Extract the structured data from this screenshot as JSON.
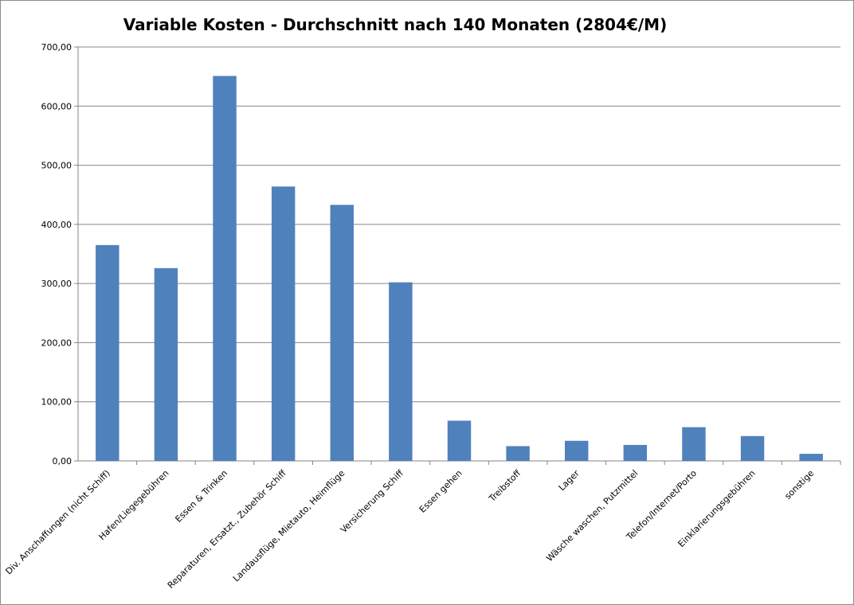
{
  "chart_data": {
    "type": "bar",
    "title": "Variable Kosten - Durchschnitt nach 140 Monaten (2804€/M)",
    "xlabel": "",
    "ylabel": "",
    "ylim": [
      0,
      700
    ],
    "yticks": [
      0,
      100,
      200,
      300,
      400,
      500,
      600,
      700
    ],
    "ytick_labels": [
      "0,00",
      "100,00",
      "200,00",
      "300,00",
      "400,00",
      "500,00",
      "600,00",
      "700,00"
    ],
    "grid": true,
    "legend": "none",
    "bar_color": "#4f81bd",
    "categories": [
      "Div. Anschaffungen (nicht Schiff)",
      "Hafen/Liegegebühren",
      "Essen & Trinken",
      "Reparaturen, Ersatzt., Zubehör Schiff",
      "Landausflüge, Mietauto, Heimflüge",
      "Versicherung Schiff",
      "Essen gehen",
      "Treibstoff",
      "Lager",
      "Wäsche waschen, Putzmittel",
      "Telefon/Internet/Porto",
      "Einklarierungsgebühren",
      "sonstige"
    ],
    "values": [
      365,
      326,
      651,
      464,
      433,
      302,
      68,
      25,
      34,
      27,
      57,
      42,
      12
    ]
  }
}
